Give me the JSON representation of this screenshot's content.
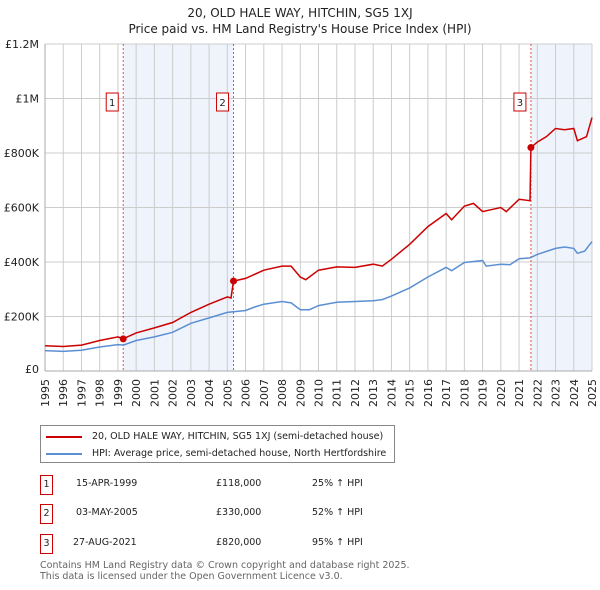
{
  "chart_data": {
    "type": "line",
    "title": "20, OLD HALE WAY, HITCHIN, SG5 1XJ",
    "subtitle": "Price paid vs. HM Land Registry's House Price Index (HPI)",
    "xlim": [
      1995,
      2025
    ],
    "ylim": [
      0,
      1200000
    ],
    "y_ticks": [
      {
        "v": 0,
        "label": "£0"
      },
      {
        "v": 200000,
        "label": "£200K"
      },
      {
        "v": 400000,
        "label": "£400K"
      },
      {
        "v": 600000,
        "label": "£600K"
      },
      {
        "v": 800000,
        "label": "£800K"
      },
      {
        "v": 1000000,
        "label": "£1M"
      },
      {
        "v": 1200000,
        "label": "£1.2M"
      }
    ],
    "x_ticks": [
      "1995",
      "1996",
      "1997",
      "1998",
      "1999",
      "2000",
      "2001",
      "2002",
      "2003",
      "2004",
      "2005",
      "2006",
      "2007",
      "2008",
      "2009",
      "2010",
      "2011",
      "2012",
      "2013",
      "2014",
      "2015",
      "2016",
      "2017",
      "2018",
      "2019",
      "2020",
      "2021",
      "2022",
      "2023",
      "2024",
      "2025"
    ],
    "grid": true,
    "shaded_ranges": [
      [
        1999.29,
        2005.34
      ],
      [
        2021.65,
        2025
      ]
    ],
    "series": [
      {
        "name": "20, OLD HALE WAY, HITCHIN, SG5 1XJ (semi-detached house)",
        "color": "#cc0000",
        "x": [
          1995,
          1996,
          1997,
          1998,
          1999,
          1999.29,
          2000,
          2001,
          2002,
          2003,
          2004,
          2005,
          2005.2,
          2005.34,
          2006,
          2007,
          2008,
          2008.5,
          2009,
          2009.3,
          2010,
          2011,
          2012,
          2013,
          2013.5,
          2014,
          2015,
          2016,
          2017,
          2017.3,
          2018,
          2018.5,
          2019,
          2020,
          2020.3,
          2021,
          2021.6,
          2021.65,
          2022,
          2022.5,
          2023,
          2023.5,
          2024,
          2024.2,
          2024.7,
          2025
        ],
        "y": [
          93000,
          90000,
          95000,
          112000,
          125000,
          118000,
          140000,
          158000,
          178000,
          215000,
          245000,
          272000,
          268000,
          330000,
          340000,
          370000,
          385000,
          385000,
          345000,
          335000,
          370000,
          382000,
          380000,
          392000,
          385000,
          410000,
          465000,
          530000,
          578000,
          555000,
          605000,
          615000,
          585000,
          600000,
          585000,
          630000,
          625000,
          820000,
          840000,
          860000,
          890000,
          885000,
          890000,
          845000,
          860000,
          930000
        ]
      },
      {
        "name": "HPI: Average price, semi-detached house, North Hertfordshire",
        "color": "#5b8fd4",
        "x": [
          1995,
          1996,
          1997,
          1998,
          1999,
          1999.3,
          2000,
          2001,
          2002,
          2003,
          2004,
          2005,
          2006,
          2006.5,
          2007,
          2008,
          2008.5,
          2009,
          2009.5,
          2010,
          2011,
          2012,
          2013,
          2013.5,
          2014,
          2015,
          2016,
          2017,
          2017.3,
          2018,
          2019,
          2019.2,
          2020,
          2020.5,
          2021,
          2021.6,
          2022,
          2023,
          2023.5,
          2024,
          2024.2,
          2024.6,
          2025
        ],
        "y": [
          75000,
          72000,
          76000,
          88000,
          97000,
          95000,
          112000,
          125000,
          142000,
          175000,
          195000,
          215000,
          222000,
          235000,
          245000,
          255000,
          250000,
          225000,
          225000,
          240000,
          252000,
          255000,
          258000,
          262000,
          275000,
          305000,
          345000,
          380000,
          368000,
          398000,
          405000,
          385000,
          392000,
          390000,
          412000,
          415000,
          428000,
          450000,
          455000,
          450000,
          432000,
          440000,
          475000
        ]
      }
    ],
    "sales": [
      {
        "n": "1",
        "x": 1999.29,
        "y": 118000,
        "date": "15-APR-1999",
        "price": "£118,000",
        "hpi": "25% ↑ HPI"
      },
      {
        "n": "2",
        "x": 2005.34,
        "y": 330000,
        "date": "03-MAY-2005",
        "price": "£330,000",
        "hpi": "52% ↑ HPI"
      },
      {
        "n": "3",
        "x": 2021.65,
        "y": 820000,
        "date": "27-AUG-2021",
        "price": "£820,000",
        "hpi": "95% ↑ HPI"
      }
    ]
  },
  "legend": {
    "red": "20, OLD HALE WAY, HITCHIN, SG5 1XJ (semi-detached house)",
    "blue": "HPI: Average price, semi-detached house, North Hertfordshire"
  },
  "footer": {
    "line1": "Contains HM Land Registry data © Crown copyright and database right 2025.",
    "line2": "This data is licensed under the Open Government Licence v3.0."
  }
}
